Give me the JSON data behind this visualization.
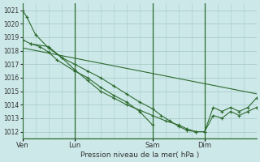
{
  "title": "Pression niveau de la mer( hPa )",
  "bg_color": "#cce8e8",
  "grid_color": "#aacccc",
  "line_color": "#2d6a2d",
  "ylim": [
    1011.5,
    1021.5
  ],
  "yticks": [
    1012,
    1013,
    1014,
    1015,
    1016,
    1017,
    1018,
    1019,
    1020,
    1021
  ],
  "xtick_labels": [
    "Ven",
    "Lun",
    "Sam",
    "Dim"
  ],
  "xtick_positions": [
    0,
    36,
    90,
    126
  ],
  "vline_positions": [
    36,
    90,
    126
  ],
  "xlim": [
    0,
    162
  ],
  "series": [
    {
      "x": [
        0,
        3,
        9,
        18,
        27,
        36,
        45,
        54,
        63,
        72,
        81,
        90,
        96,
        102,
        108,
        114,
        120,
        126,
        132,
        138,
        144,
        150,
        156,
        162
      ],
      "y": [
        1021.0,
        1020.5,
        1019.2,
        1018.2,
        1017.5,
        1017.0,
        1016.5,
        1016.0,
        1015.4,
        1014.8,
        1014.2,
        1013.7,
        1013.2,
        1012.8,
        1012.4,
        1012.1,
        1012.0,
        1012.0,
        1013.8,
        1013.5,
        1013.8,
        1013.5,
        1013.8,
        1014.5
      ],
      "marker": true
    },
    {
      "x": [
        0,
        6,
        12,
        18,
        24,
        36,
        45,
        54,
        63,
        72,
        81,
        90
      ],
      "y": [
        1018.8,
        1018.5,
        1018.3,
        1017.9,
        1017.3,
        1016.5,
        1016.0,
        1015.3,
        1014.7,
        1014.2,
        1013.5,
        1012.5
      ],
      "marker": true
    },
    {
      "x": [
        0,
        162
      ],
      "y": [
        1018.2,
        1014.8
      ],
      "marker": false
    },
    {
      "x": [
        6,
        18,
        27,
        36,
        45,
        54,
        63,
        72,
        81,
        90,
        99,
        108,
        114,
        120,
        126,
        132,
        138,
        144,
        150,
        156,
        162
      ],
      "y": [
        1018.5,
        1018.3,
        1017.5,
        1016.6,
        1015.8,
        1015.0,
        1014.5,
        1014.0,
        1013.6,
        1013.2,
        1012.8,
        1012.5,
        1012.2,
        1012.0,
        1012.0,
        1013.2,
        1013.0,
        1013.5,
        1013.2,
        1013.5,
        1013.8
      ],
      "marker": true
    }
  ]
}
